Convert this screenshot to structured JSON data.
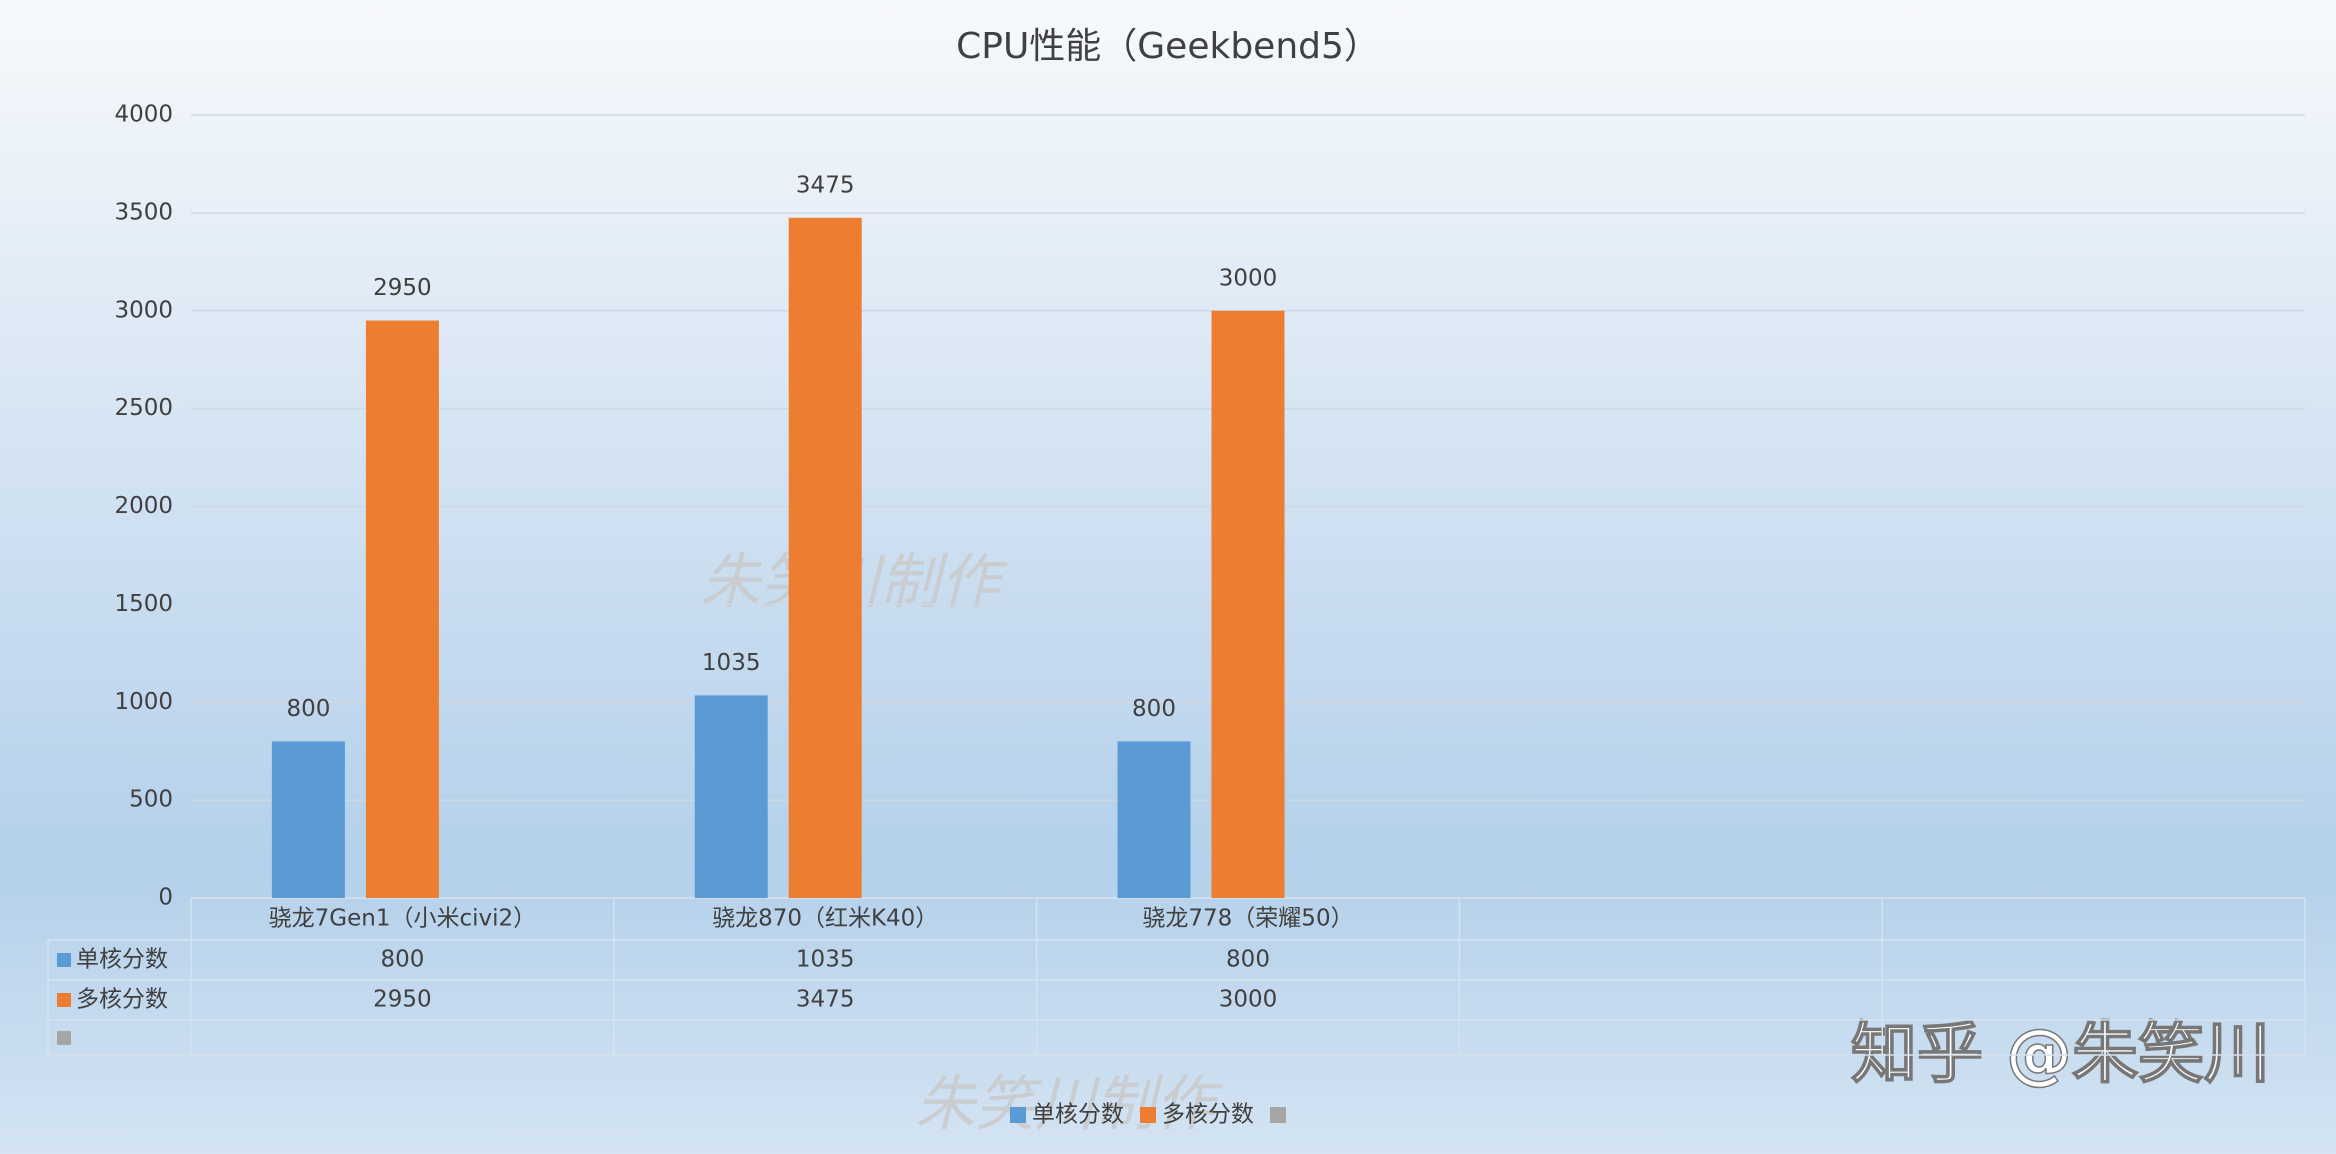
{
  "chart_data": {
    "type": "bar",
    "title": "CPU性能（Geekbend5）",
    "categories": [
      "骁龙7Gen1（小米civi2）",
      "骁龙870（红米K40）",
      "骁龙778（荣耀50）",
      null,
      null
    ],
    "series": [
      {
        "name": "单核分数",
        "color": "#5b9bd5",
        "values": [
          800,
          1035,
          800,
          null,
          null
        ]
      },
      {
        "name": "多核分数",
        "color": "#ed7d31",
        "values": [
          2950,
          3475,
          3000,
          null,
          null
        ]
      }
    ],
    "ylim": [
      0,
      4000
    ],
    "yticks": [
      0,
      500,
      1000,
      1500,
      2000,
      2500,
      3000,
      3500,
      4000
    ],
    "grid": true,
    "legend": "bottom",
    "annotations": [
      "朱笑川制作",
      "朱笑川制作",
      "知乎 @朱笑川"
    ]
  }
}
